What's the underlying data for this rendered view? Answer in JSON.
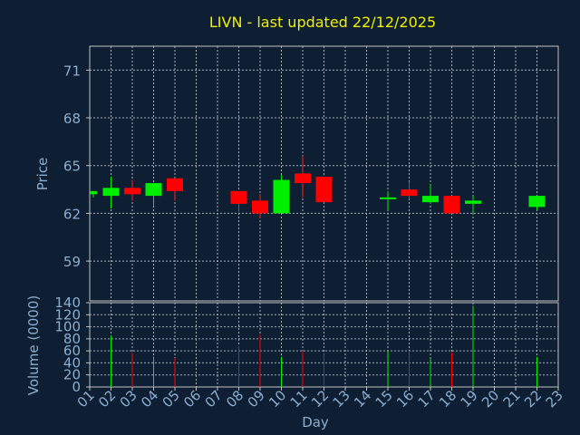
{
  "chart_data": [
    {
      "type": "candlestick",
      "title": "LIVN - last updated 22/12/2025",
      "ylabel": "Price",
      "ylim": [
        56.5,
        72.5
      ],
      "yticks": [
        59,
        62,
        65,
        68,
        71
      ],
      "grid": true,
      "x_categories": [
        "01",
        "02",
        "03",
        "04",
        "05",
        "06",
        "07",
        "08",
        "09",
        "10",
        "11",
        "12",
        "13",
        "14",
        "15",
        "16",
        "17",
        "18",
        "19",
        "20",
        "21",
        "22",
        "23"
      ],
      "candles": [
        {
          "day": "01",
          "open": 63.2,
          "high": 63.4,
          "low": 63.0,
          "close": 63.4
        },
        {
          "day": "02",
          "open": 63.1,
          "high": 64.3,
          "low": 62.3,
          "close": 63.6
        },
        {
          "day": "03",
          "open": 63.6,
          "high": 64.1,
          "low": 62.8,
          "close": 63.2
        },
        {
          "day": "04",
          "open": 63.1,
          "high": 63.9,
          "low": 62.5,
          "close": 63.9
        },
        {
          "day": "05",
          "open": 64.2,
          "high": 64.2,
          "low": 62.8,
          "close": 63.4
        },
        {
          "day": "08",
          "open": 63.4,
          "high": 63.4,
          "low": 62.1,
          "close": 62.6
        },
        {
          "day": "09",
          "open": 62.8,
          "high": 63.2,
          "low": 61.7,
          "close": 62.0
        },
        {
          "day": "10",
          "open": 62.0,
          "high": 64.4,
          "low": 62.0,
          "close": 64.1
        },
        {
          "day": "11",
          "open": 64.5,
          "high": 65.6,
          "low": 63.0,
          "close": 63.9
        },
        {
          "day": "12",
          "open": 64.3,
          "high": 64.3,
          "low": 62.7,
          "close": 62.7
        },
        {
          "day": "15",
          "open": 62.9,
          "high": 63.4,
          "low": 62.2,
          "close": 63.0
        },
        {
          "day": "16",
          "open": 63.5,
          "high": 64.0,
          "low": 62.9,
          "close": 63.1
        },
        {
          "day": "17",
          "open": 62.7,
          "high": 63.8,
          "low": 62.6,
          "close": 63.1
        },
        {
          "day": "18",
          "open": 63.1,
          "high": 63.1,
          "low": 62.0,
          "close": 62.0
        },
        {
          "day": "19",
          "open": 62.6,
          "high": 63.1,
          "low": 62.0,
          "close": 62.8
        },
        {
          "day": "22",
          "open": 62.4,
          "high": 63.1,
          "low": 62.2,
          "close": 63.1
        }
      ]
    },
    {
      "type": "bar",
      "ylabel": "Volume (0000)",
      "xlabel": "Day",
      "ylim": [
        0,
        140
      ],
      "yticks": [
        0,
        20,
        40,
        60,
        80,
        100,
        120,
        140
      ],
      "grid": true,
      "x_categories": [
        "01",
        "02",
        "03",
        "04",
        "05",
        "06",
        "07",
        "08",
        "09",
        "10",
        "11",
        "12",
        "13",
        "14",
        "15",
        "16",
        "17",
        "18",
        "19",
        "20",
        "21",
        "22",
        "23"
      ],
      "volumes": [
        {
          "day": "02",
          "value": 85,
          "direction": "up"
        },
        {
          "day": "03",
          "value": 57,
          "direction": "down"
        },
        {
          "day": "04",
          "value": 50,
          "direction": "up"
        },
        {
          "day": "05",
          "value": 48,
          "direction": "down"
        },
        {
          "day": "08",
          "value": 68,
          "direction": "down"
        },
        {
          "day": "09",
          "value": 87,
          "direction": "down"
        },
        {
          "day": "10",
          "value": 50,
          "direction": "up"
        },
        {
          "day": "11",
          "value": 60,
          "direction": "down"
        },
        {
          "day": "12",
          "value": 55,
          "direction": "down"
        },
        {
          "day": "15",
          "value": 60,
          "direction": "up"
        },
        {
          "day": "16",
          "value": 60,
          "direction": "down"
        },
        {
          "day": "17",
          "value": 47,
          "direction": "up"
        },
        {
          "day": "18",
          "value": 57,
          "direction": "down"
        },
        {
          "day": "19",
          "value": 135,
          "direction": "up"
        },
        {
          "day": "22",
          "value": 50,
          "direction": "up"
        }
      ]
    }
  ],
  "colors": {
    "background": "#0f1f33",
    "frame": "#c0c0c0",
    "grid": "#a8b0b8",
    "axis_text": "#8aaed0",
    "title": "#f0f000",
    "up": "#00ee00",
    "down": "#ff0000",
    "wick_up": "#00ee00",
    "wick_down": "#ff2020"
  }
}
